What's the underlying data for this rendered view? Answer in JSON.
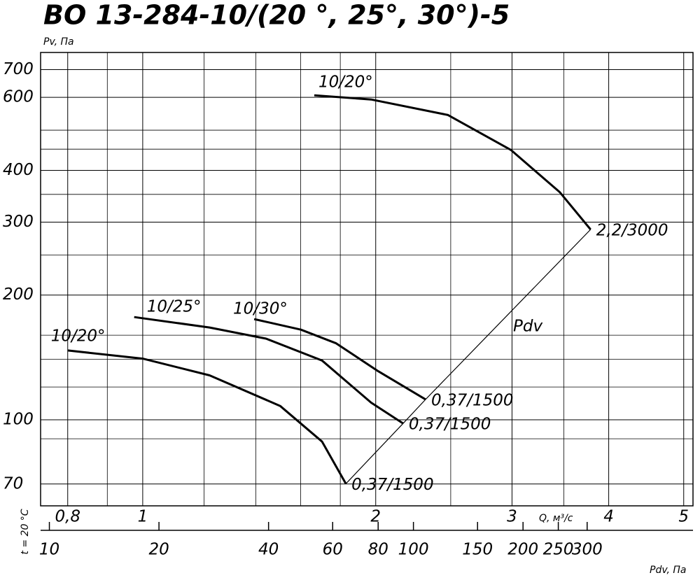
{
  "chart_data": {
    "type": "line",
    "title": "ВО 13-284-10/(20 °, 25°, 30°)-5",
    "y_label": "Pv, Па",
    "x_label": "Q, м³/с",
    "x2_label": "Pdv, Па",
    "note": "t = 20 °C",
    "log": true,
    "color": "#000000",
    "xlim": [
      0.738,
      5.14
    ],
    "ylim": [
      62,
      770
    ],
    "x2lim": [
      9.46,
      586
    ],
    "xticks": [
      {
        "value": 0.8,
        "label": "0,8"
      },
      1,
      2,
      3,
      4,
      5
    ],
    "xgrid": [
      0.9,
      1.2,
      1.4,
      1.6,
      1.8,
      2.5,
      3.5
    ],
    "yticks": [
      70,
      100,
      200,
      300,
      400,
      600,
      700
    ],
    "ygrid": [
      90,
      120,
      140,
      160,
      250,
      350,
      450,
      500
    ],
    "x2ticks": [
      10,
      20,
      40,
      60,
      80,
      100,
      150,
      200,
      250,
      300
    ],
    "series": [
      {
        "name": "10/20°",
        "end_label": "0,37/1500",
        "x": [
          0.8,
          1.0,
          1.22,
          1.505,
          1.705,
          1.83
        ],
        "values": [
          147,
          140.5,
          128,
          108,
          88.6,
          70.1
        ]
      },
      {
        "name": "10/25°",
        "end_label": "0,37/1500",
        "x": [
          0.975,
          1.22,
          1.443,
          1.705,
          1.973,
          2.17
        ],
        "values": [
          177,
          167,
          157,
          139,
          110,
          98
        ]
      },
      {
        "name": "10/30°",
        "end_label": "0,37/1500",
        "x": [
          1.393,
          1.601,
          1.778,
          2.015,
          2.32
        ],
        "values": [
          175,
          165,
          153,
          131,
          112
        ]
      },
      {
        "name": "10/20°",
        "end_label": "2,2/3000",
        "x": [
          1.666,
          1.973,
          2.48,
          2.99,
          3.46,
          3.79
        ],
        "values": [
          607,
          593,
          544,
          448,
          354,
          288
        ]
      }
    ],
    "pdv_line": {
      "name": "Pdv",
      "x": [
        1.83,
        2.17,
        2.32,
        3.79
      ],
      "values": [
        70.1,
        98,
        112,
        288
      ]
    }
  }
}
